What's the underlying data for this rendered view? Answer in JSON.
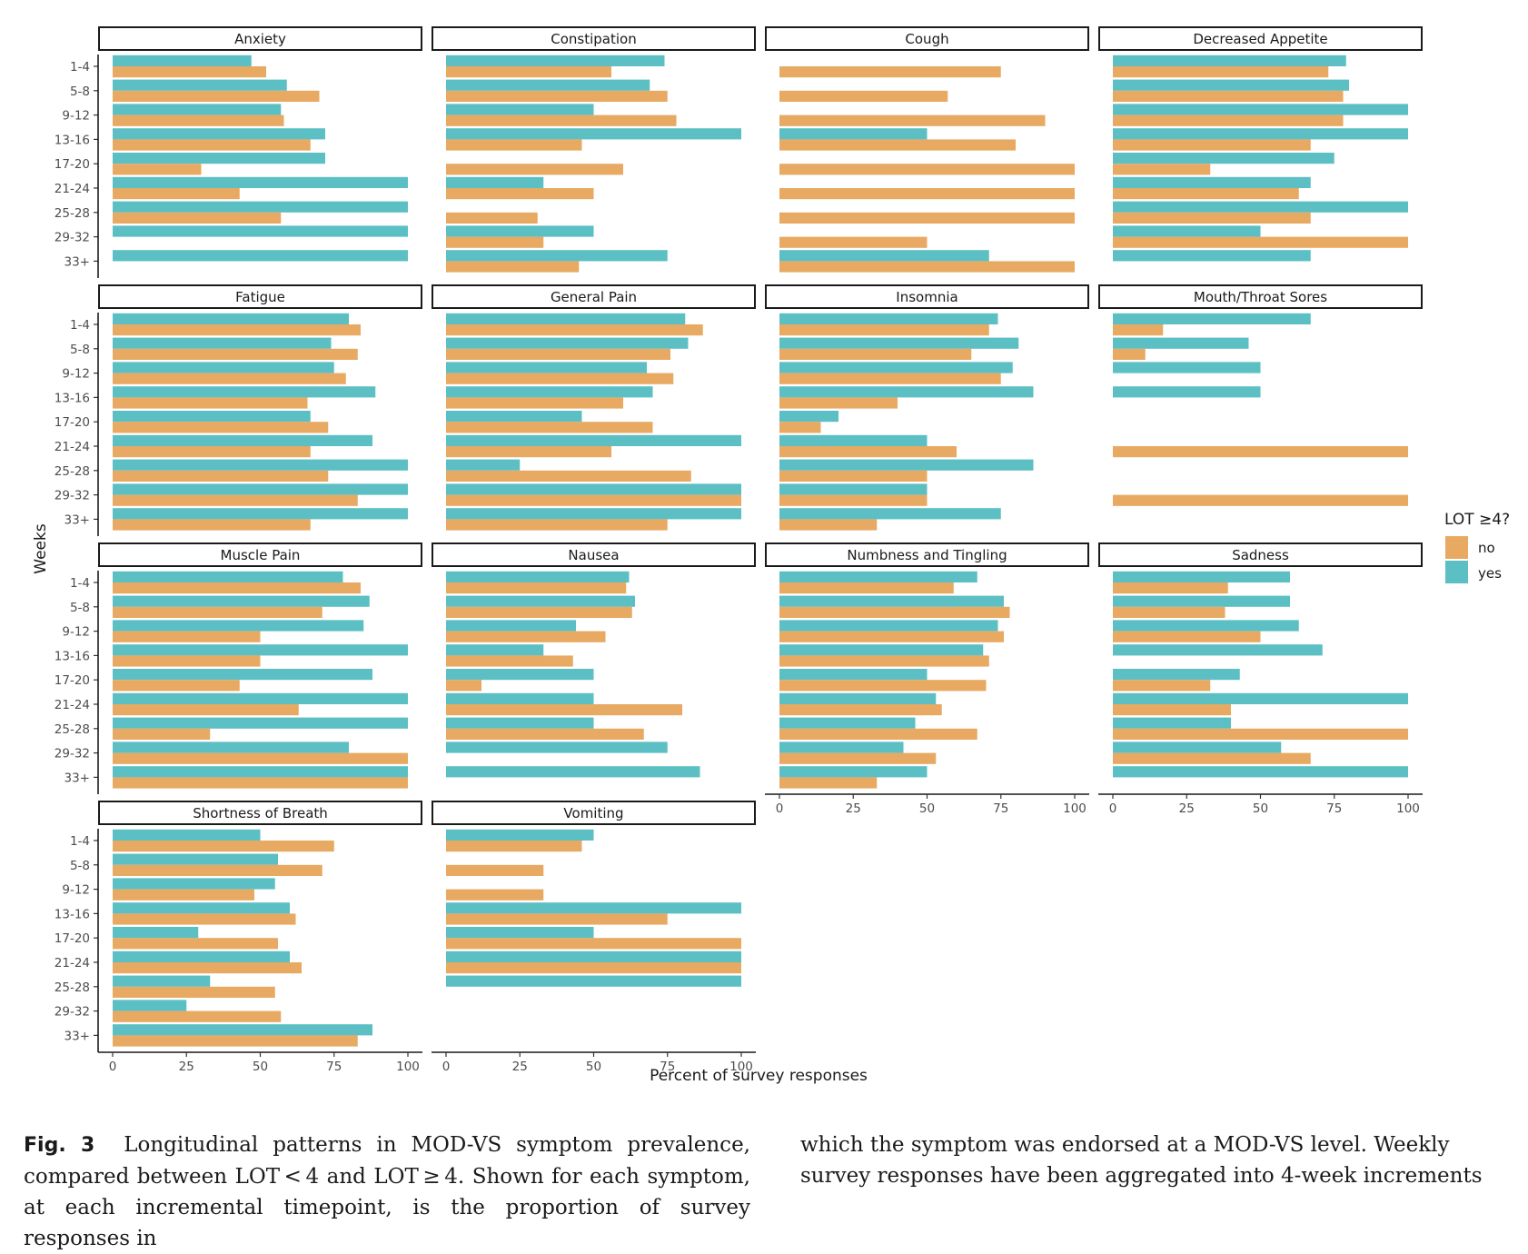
{
  "chart_data": {
    "type": "bar",
    "orientation": "horizontal",
    "facet_layout": "4 columns, 4 rows",
    "categories": [
      "1-4",
      "5-8",
      "9-12",
      "13-16",
      "17-20",
      "21-24",
      "25-28",
      "29-32",
      "33+"
    ],
    "xlabel": "Percent of survey responses",
    "ylabel": "Weeks",
    "xlim": [
      0,
      100
    ],
    "x_ticks": [
      0,
      25,
      50,
      75,
      100
    ],
    "legend": {
      "title": "LOT ≥4?",
      "placement": "right",
      "entries": [
        {
          "label": "no",
          "color": "#E8A962"
        },
        {
          "label": "yes",
          "color": "#5BBFC3"
        }
      ]
    },
    "series_colors": {
      "no": "#E8A962",
      "yes": "#5BBFC3"
    },
    "panels": [
      {
        "title": "Anxiety",
        "yes": [
          47,
          59,
          57,
          72,
          72,
          100,
          100,
          100,
          100
        ],
        "no": [
          52,
          70,
          58,
          67,
          30,
          43,
          57,
          null,
          null
        ]
      },
      {
        "title": "Constipation",
        "yes": [
          74,
          69,
          50,
          100,
          null,
          33,
          null,
          50,
          75
        ],
        "no": [
          56,
          75,
          78,
          46,
          60,
          50,
          31,
          33,
          45
        ]
      },
      {
        "title": "Cough",
        "yes": [
          null,
          null,
          null,
          50,
          null,
          null,
          null,
          null,
          71
        ],
        "no": [
          75,
          57,
          90,
          80,
          100,
          100,
          100,
          50,
          100
        ]
      },
      {
        "title": "Decreased Appetite",
        "yes": [
          79,
          80,
          100,
          100,
          75,
          67,
          100,
          50,
          67
        ],
        "no": [
          73,
          78,
          78,
          67,
          33,
          63,
          67,
          100,
          null
        ]
      },
      {
        "title": "Fatigue",
        "yes": [
          80,
          74,
          75,
          89,
          67,
          88,
          100,
          100,
          100
        ],
        "no": [
          84,
          83,
          79,
          66,
          73,
          67,
          73,
          83,
          67
        ]
      },
      {
        "title": "General Pain",
        "yes": [
          81,
          82,
          68,
          70,
          46,
          100,
          25,
          100,
          100
        ],
        "no": [
          87,
          76,
          77,
          60,
          70,
          56,
          83,
          100,
          75
        ]
      },
      {
        "title": "Insomnia",
        "yes": [
          74,
          81,
          79,
          86,
          20,
          50,
          86,
          50,
          75
        ],
        "no": [
          71,
          65,
          75,
          40,
          14,
          60,
          50,
          50,
          33
        ]
      },
      {
        "title": "Mouth/Throat Sores",
        "yes": [
          67,
          46,
          50,
          50,
          null,
          null,
          null,
          null,
          null
        ],
        "no": [
          17,
          11,
          null,
          null,
          null,
          100,
          null,
          100,
          null
        ]
      },
      {
        "title": "Muscle Pain",
        "yes": [
          78,
          87,
          85,
          100,
          88,
          100,
          100,
          80,
          100
        ],
        "no": [
          84,
          71,
          50,
          50,
          43,
          63,
          33,
          100,
          100
        ]
      },
      {
        "title": "Nausea",
        "yes": [
          62,
          64,
          44,
          33,
          50,
          50,
          50,
          75,
          86
        ],
        "no": [
          61,
          63,
          54,
          43,
          12,
          80,
          67,
          null,
          null
        ]
      },
      {
        "title": "Numbness and Tingling",
        "yes": [
          67,
          76,
          74,
          69,
          50,
          53,
          46,
          42,
          50
        ],
        "no": [
          59,
          78,
          76,
          71,
          70,
          55,
          67,
          53,
          33
        ]
      },
      {
        "title": "Sadness",
        "yes": [
          60,
          60,
          63,
          71,
          43,
          100,
          40,
          57,
          100
        ],
        "no": [
          39,
          38,
          50,
          null,
          33,
          40,
          100,
          67,
          null
        ]
      },
      {
        "title": "Shortness of Breath",
        "yes": [
          50,
          56,
          55,
          60,
          29,
          60,
          33,
          25,
          88
        ],
        "no": [
          75,
          71,
          48,
          62,
          56,
          64,
          55,
          57,
          83
        ]
      },
      {
        "title": "Vomiting",
        "yes": [
          50,
          null,
          null,
          100,
          50,
          100,
          100,
          null,
          null
        ],
        "no": [
          46,
          33,
          33,
          75,
          100,
          100,
          null,
          null,
          null
        ]
      }
    ]
  },
  "caption": {
    "label": "Fig. 3",
    "text_left": "Longitudinal patterns in MOD-VS symptom prevalence, compared between LOT < 4 and LOT ≥ 4. Shown for each symptom, at each incremental timepoint, is the proportion of survey responses in",
    "text_right": "which the symptom was endorsed at a MOD-VS level. Weekly survey responses have been aggregated into 4-week increments"
  }
}
